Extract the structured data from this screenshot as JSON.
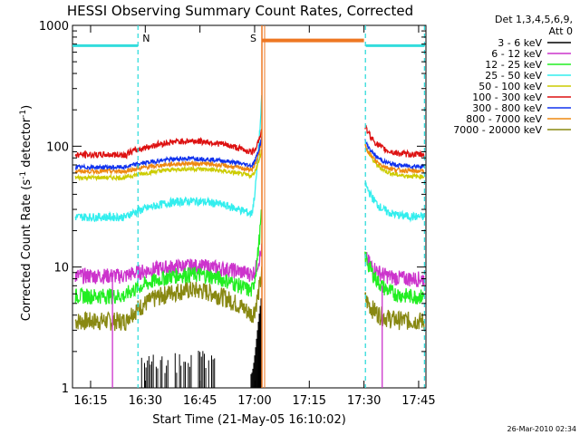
{
  "chart_data": {
    "type": "line",
    "title": "HESSI Observing Summary Count Rates, Corrected",
    "xlabel": "Start Time (21-May-05 16:10:02)",
    "ylabel_main": "Corrected Count Rate (s",
    "ylabel_sup1": "-1",
    "ylabel_mid": " detector",
    "ylabel_sup2": "-1",
    "ylabel_end": ")",
    "y_scale": "log",
    "xlim": [
      "16:10:02",
      "17:47"
    ],
    "ylim": [
      1,
      1000
    ],
    "x_ticks": [
      "16:15",
      "16:30",
      "16:45",
      "17:00",
      "17:15",
      "17:30",
      "17:45"
    ],
    "y_ticks": [
      "1",
      "10",
      "100",
      "1000"
    ],
    "grid": false,
    "legend_position": "right",
    "legend_header": [
      "Det 1,3,4,5,6,9,",
      "Att 0"
    ],
    "timestamp": "26-Mar-2010 02:34",
    "markers": [
      {
        "label": "N",
        "time": "16:28",
        "color": "#33dddd"
      },
      {
        "label": "S",
        "time": "17:02",
        "color": "#e08a10"
      }
    ],
    "data_gaps": [
      {
        "start": "17:02",
        "end": "17:30",
        "label": "S",
        "level": 750,
        "color": "#ee7722"
      }
    ],
    "series": [
      {
        "name": "3 - 6 keV",
        "color": "#000000"
      },
      {
        "name": "6 - 12 keV",
        "color": "#cc33cc"
      },
      {
        "name": "12 - 25 keV",
        "color": "#22ee22"
      },
      {
        "name": "25 - 50 keV",
        "color": "#33eeee"
      },
      {
        "name": "50 - 100 keV",
        "color": "#cccc00"
      },
      {
        "name": "100 - 300 keV",
        "color": "#dd1111"
      },
      {
        "name": "300 - 800 keV",
        "color": "#1133ee"
      },
      {
        "name": "800 - 7000 keV",
        "color": "#ee8811"
      },
      {
        "name": "7000 - 20000 keV",
        "color": "#888811"
      }
    ]
  }
}
